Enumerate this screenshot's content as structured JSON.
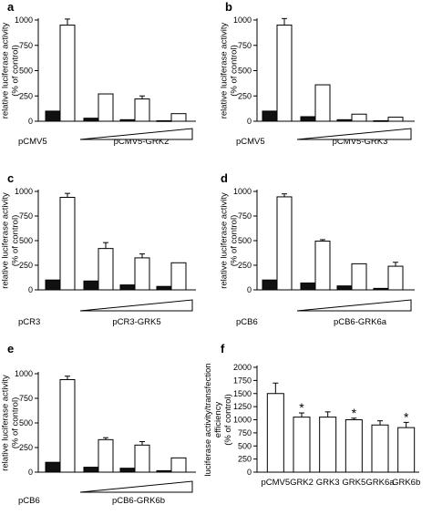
{
  "figure": {
    "background": "#ffffff"
  },
  "chart_data": [
    {
      "type": "bar",
      "panel": "a",
      "ylabel": "relative luciferase activity\n(% of control)",
      "ylim": [
        0,
        1000
      ],
      "yticks": [
        "0",
        "250",
        "500",
        "750",
        "1000"
      ],
      "group_labels": [
        "pCMV5",
        "pCMV5-GRK2"
      ],
      "has_wedge": true,
      "pairs": [
        {
          "filled": 100,
          "open": 950,
          "open_err": 60
        },
        {
          "filled": 30,
          "open": 270,
          "open_err": 0
        },
        {
          "filled": 15,
          "open": 220,
          "open_err": 30
        },
        {
          "filled": 5,
          "open": 75,
          "open_err": 0
        }
      ]
    },
    {
      "type": "bar",
      "panel": "b",
      "ylabel": "relative luciferase activity\n(% of control)",
      "ylim": [
        0,
        1000
      ],
      "yticks": [
        "0",
        "250",
        "500",
        "750",
        "1000"
      ],
      "group_labels": [
        "pCMV5",
        "pCMV5-GRK3"
      ],
      "has_wedge": true,
      "pairs": [
        {
          "filled": 100,
          "open": 950,
          "open_err": 65
        },
        {
          "filled": 45,
          "open": 360,
          "open_err": 0
        },
        {
          "filled": 15,
          "open": 70,
          "open_err": 0
        },
        {
          "filled": 5,
          "open": 40,
          "open_err": 0
        }
      ]
    },
    {
      "type": "bar",
      "panel": "c",
      "ylabel": "relative luciferase activity\n(% of control)",
      "ylim": [
        0,
        1000
      ],
      "yticks": [
        "0",
        "250",
        "500",
        "750",
        "1000"
      ],
      "group_labels": [
        "pCR3",
        "pCR3-GRK5"
      ],
      "has_wedge": true,
      "pairs": [
        {
          "filled": 100,
          "open": 940,
          "open_err": 40
        },
        {
          "filled": 90,
          "open": 420,
          "open_err": 60
        },
        {
          "filled": 50,
          "open": 325,
          "open_err": 40
        },
        {
          "filled": 35,
          "open": 275,
          "open_err": 0
        }
      ]
    },
    {
      "type": "bar",
      "panel": "d",
      "ylabel": "relative luciferase activity\n(% of control)",
      "ylim": [
        0,
        1000
      ],
      "yticks": [
        "0",
        "250",
        "500",
        "750",
        "1000"
      ],
      "group_labels": [
        "pCB6",
        "pCB6-GRK6a"
      ],
      "has_wedge": true,
      "pairs": [
        {
          "filled": 100,
          "open": 945,
          "open_err": 30
        },
        {
          "filled": 70,
          "open": 495,
          "open_err": 15
        },
        {
          "filled": 40,
          "open": 265,
          "open_err": 0
        },
        {
          "filled": 15,
          "open": 240,
          "open_err": 40
        }
      ]
    },
    {
      "type": "bar",
      "panel": "e",
      "ylabel": "relative luciferase activity\n(% of control)",
      "ylim": [
        0,
        1000
      ],
      "yticks": [
        "0",
        "250",
        "500",
        "750",
        "1000"
      ],
      "group_labels": [
        "pCB6",
        "pCB6-GRK6b"
      ],
      "has_wedge": true,
      "pairs": [
        {
          "filled": 100,
          "open": 940,
          "open_err": 35
        },
        {
          "filled": 50,
          "open": 330,
          "open_err": 20
        },
        {
          "filled": 40,
          "open": 275,
          "open_err": 35
        },
        {
          "filled": 15,
          "open": 145,
          "open_err": 0
        }
      ]
    },
    {
      "type": "bar",
      "panel": "f",
      "ylabel": "luciferase activity/transfection\nefficiency\n(% of control)",
      "ylim": [
        0,
        2000
      ],
      "yticks": [
        "0",
        "250",
        "500",
        "750",
        "1000",
        "1250",
        "1500",
        "1750",
        "2000"
      ],
      "categories": [
        "pCMV5",
        "GRK2",
        "GRK3",
        "GRK5",
        "GRK6a",
        "GRK6b"
      ],
      "values": [
        1500,
        1050,
        1050,
        1000,
        900,
        850
      ],
      "errors": [
        200,
        80,
        100,
        30,
        80,
        100
      ],
      "significance": [
        "",
        "*",
        "",
        "*",
        "",
        "*"
      ]
    }
  ]
}
